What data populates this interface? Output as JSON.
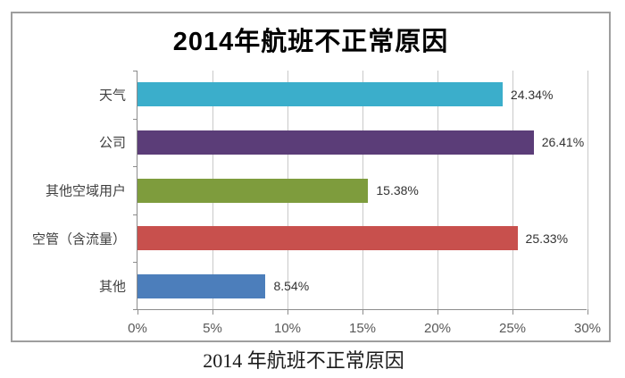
{
  "chart_data": {
    "type": "bar",
    "orientation": "horizontal",
    "title": "2014年航班不正常原因",
    "categories": [
      "天气",
      "公司",
      "其他空域用户",
      "空管（含流量）",
      "其他"
    ],
    "values": [
      24.34,
      26.41,
      15.38,
      25.33,
      8.54
    ],
    "value_labels": [
      "24.34%",
      "26.41%",
      "15.38%",
      "25.33%",
      "8.54%"
    ],
    "colors": [
      "#3BAECB",
      "#5B3D78",
      "#7E9C3D",
      "#C8504D",
      "#4C7EBB"
    ],
    "xlabel": "",
    "ylabel": "",
    "xlim": [
      0,
      30
    ],
    "x_ticks": [
      {
        "value": 0,
        "label": "0%"
      },
      {
        "value": 5,
        "label": "5%"
      },
      {
        "value": 10,
        "label": "10%"
      },
      {
        "value": 15,
        "label": "15%"
      },
      {
        "value": 20,
        "label": "20%"
      },
      {
        "value": 25,
        "label": "25%"
      },
      {
        "value": 30,
        "label": "30%"
      }
    ],
    "grid": "vertical-on",
    "legend": "none"
  },
  "caption": "2014 年航班不正常原因",
  "style_colors": {
    "gridline": "#c9c9c9",
    "axis": "#8c8c8c",
    "frame_border": "#9e9e9e"
  }
}
